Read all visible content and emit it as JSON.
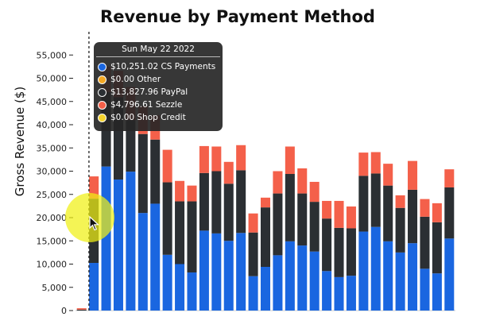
{
  "chart_data": {
    "type": "bar",
    "stacked": true,
    "title": "Revenue by Payment Method",
    "ylabel": "Gross Revenue ($)",
    "xlabel": "",
    "ylim": [
      0,
      60000
    ],
    "yticks": [
      0,
      5000,
      10000,
      15000,
      20000,
      25000,
      30000,
      35000,
      40000,
      45000,
      50000,
      55000
    ],
    "ytick_labels": [
      "0",
      "5,000",
      "10,000",
      "15,000",
      "20,000",
      "25,000",
      "30,000",
      "35,000",
      "40,000",
      "45,000",
      "50,000",
      "55,000"
    ],
    "grid": false,
    "legend": "none",
    "series": [
      {
        "name": "CS Payments",
        "color": "#1a66e0",
        "values": [
          0,
          10251.02,
          31000,
          28200,
          29900,
          21000,
          23000,
          12000,
          10000,
          8200,
          17200,
          16600,
          15000,
          16700,
          7400,
          9400,
          11900,
          14900,
          14000,
          12700,
          8500,
          7200,
          7500,
          17000,
          18000,
          14900,
          12500,
          14500,
          9000,
          8000,
          15500
        ]
      },
      {
        "name": "Other",
        "color": "#f5a623",
        "values": [
          0,
          0,
          0,
          0,
          0,
          0,
          0,
          0,
          0,
          0,
          0,
          0,
          0,
          0,
          0,
          0,
          0,
          0,
          0,
          0,
          0,
          0,
          0,
          0,
          0,
          0,
          0,
          0,
          0,
          0,
          0
        ]
      },
      {
        "name": "PayPal",
        "color": "#2b2f33",
        "values": [
          200,
          13827.96,
          16000,
          17700,
          11100,
          17000,
          13800,
          15600,
          13500,
          15300,
          12400,
          13400,
          12300,
          13500,
          9400,
          12800,
          13300,
          14500,
          11200,
          10700,
          11300,
          10600,
          10200,
          12000,
          11500,
          12000,
          9600,
          11500,
          11200,
          11000,
          11000
        ]
      },
      {
        "name": "Sezzle",
        "color": "#f4604a",
        "values": [
          300,
          4796.61,
          5500,
          5700,
          7100,
          6000,
          5200,
          7000,
          4400,
          3400,
          5800,
          5300,
          4700,
          5400,
          4100,
          2100,
          4800,
          5900,
          5400,
          4300,
          3800,
          5800,
          4700,
          5000,
          4600,
          4700,
          2700,
          6200,
          3800,
          4100,
          3900
        ]
      },
      {
        "name": "Shop Credit",
        "color": "#f6d32d",
        "values": [
          0,
          0,
          0,
          0,
          0,
          0,
          0,
          0,
          0,
          0,
          0,
          0,
          0,
          0,
          0,
          0,
          0,
          0,
          0,
          0,
          0,
          0,
          0,
          0,
          0,
          0,
          0,
          0,
          0,
          0,
          0
        ]
      }
    ],
    "hover_index": 1
  },
  "tooltip": {
    "date": "Sun May 22 2022",
    "rows": [
      {
        "text": "$10,251.02 CS Payments",
        "color": "#1a66e0"
      },
      {
        "text": "$0.00 Other",
        "color": "#f5a623"
      },
      {
        "text": "$13,827.96 PayPal",
        "color": "#2b2f33"
      },
      {
        "text": "$4,796.61 Sezzle",
        "color": "#f4604a"
      },
      {
        "text": "$0.00 Shop Credit",
        "color": "#f6d32d"
      }
    ]
  }
}
